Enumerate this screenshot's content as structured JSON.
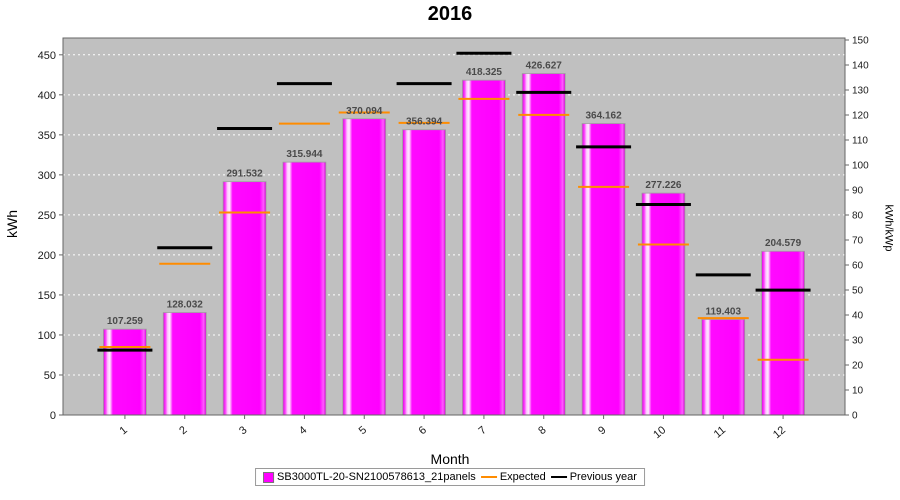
{
  "chart_data": {
    "type": "bar",
    "title": "2016",
    "xlabel": "Month",
    "ylabel_left": "kWh",
    "ylabel_right": "kWh/kWp",
    "categories": [
      "1",
      "2",
      "3",
      "4",
      "5",
      "6",
      "7",
      "8",
      "9",
      "10",
      "11",
      "12"
    ],
    "series": [
      {
        "name": "SB3000TL-20-SN2100578613_21panels",
        "type": "bar",
        "color": "#ff00ff",
        "values": [
          107.259,
          128.032,
          291.532,
          315.944,
          370.094,
          356.394,
          418.325,
          426.627,
          364.162,
          277.226,
          119.403,
          204.579
        ]
      },
      {
        "name": "Expected",
        "type": "marker",
        "color": "#ff8c00",
        "values": [
          85,
          189,
          253,
          364,
          378,
          365,
          395,
          375,
          285,
          213,
          121,
          69
        ]
      },
      {
        "name": "Previous year",
        "type": "marker",
        "color": "#000000",
        "values": [
          81,
          209,
          358,
          414,
          null,
          414,
          452,
          403,
          335,
          263,
          175,
          156
        ]
      }
    ],
    "bar_labels": [
      "107.259",
      "128.032",
      "291.532",
      "315.944",
      "370.094",
      "356.394",
      "418.325",
      "426.627",
      "364.162",
      "277.226",
      "119.403",
      "204.579"
    ],
    "axes": {
      "left": {
        "label": "kWh",
        "min": 0,
        "max": 471,
        "ticks": [
          0,
          50,
          100,
          150,
          200,
          250,
          300,
          350,
          400,
          450
        ]
      },
      "right": {
        "label": "kWh/kWp",
        "min": 0,
        "max": 150.8,
        "ticks": [
          0,
          10,
          20,
          30,
          40,
          50,
          60,
          70,
          80,
          90,
          100,
          110,
          120,
          130,
          140,
          150
        ]
      },
      "x": {
        "label": "Month"
      }
    },
    "legend_position": "bottom",
    "grid": true,
    "colors": {
      "bar": "#ff00ff",
      "expected": "#ff8c00",
      "previous_year": "#000000",
      "plot_bg": "#c0c0c0",
      "grid": "#ffffff",
      "axis": "#666666",
      "bar_label": "#4a4a4a",
      "tick_label": "#1a1a1a"
    }
  }
}
